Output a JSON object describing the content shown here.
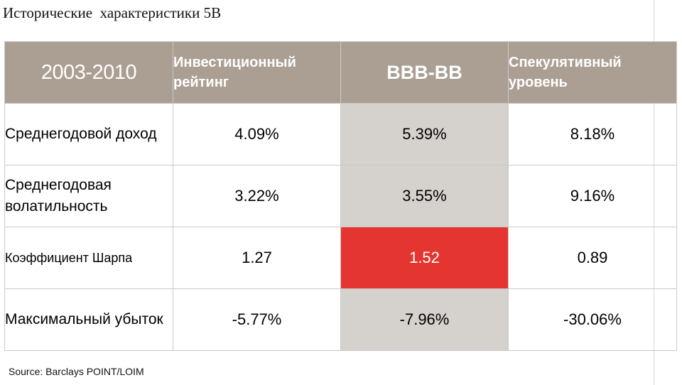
{
  "title": "Исторические  характеристики 5B",
  "table": {
    "headers": [
      "2003-2010",
      "Инвестиционный рейтинг",
      "BBB-BB",
      "Спекулятивный уровень"
    ],
    "rows": [
      {
        "label": "Среднегодовой доход",
        "values": [
          "4.09%",
          "5.39%",
          "8.18%"
        ]
      },
      {
        "label": "Среднегодовая волатильность",
        "values": [
          "3.22%",
          "3.55%",
          "9.16%"
        ]
      },
      {
        "label": "Коэффициент Шарпа",
        "values": [
          "1.27",
          "1.52",
          "0.89"
        ]
      },
      {
        "label": "Максимальный убыток",
        "values": [
          "-5.77%",
          "-7.96%",
          "-30.06%"
        ]
      }
    ]
  },
  "colors": {
    "header_bg": "#ab9f93",
    "highlight_col_bg": "#d5d1cc",
    "highlight_cell_bg": "#e43530"
  },
  "source": "Source: Barclays POINT/LOIM"
}
